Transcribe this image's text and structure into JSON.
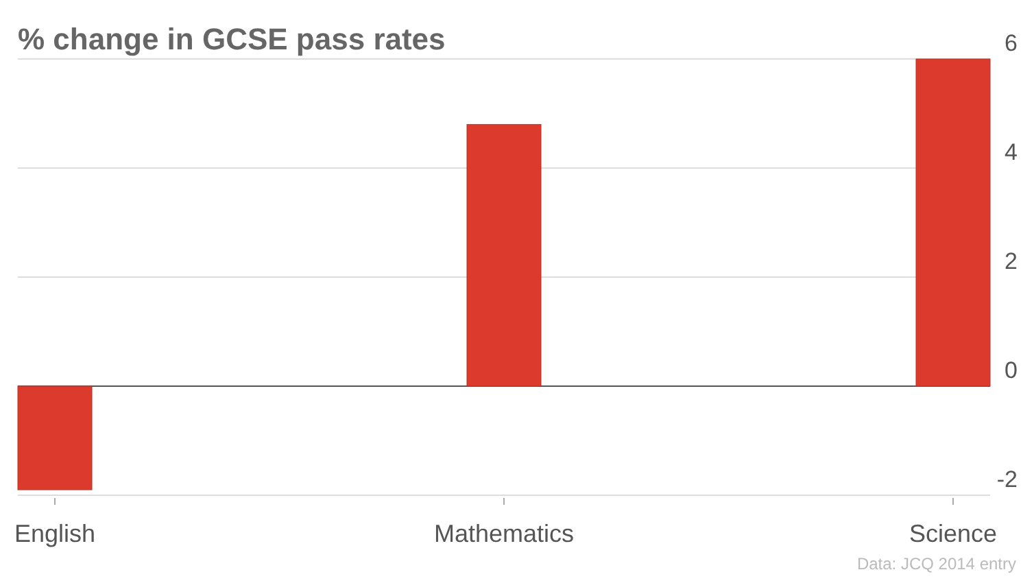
{
  "chart_data": {
    "type": "bar",
    "title": "% change in GCSE pass rates",
    "categories": [
      "English",
      "Mathematics",
      "Science"
    ],
    "values": [
      -1.9,
      4.8,
      6.0
    ],
    "color": "#dc3a2c",
    "ylim": [
      -2,
      6
    ],
    "yticks": [
      -2,
      0,
      2,
      4,
      6
    ],
    "grid": "y",
    "annotations": [
      "Data: JCQ 2014 entry"
    ]
  }
}
